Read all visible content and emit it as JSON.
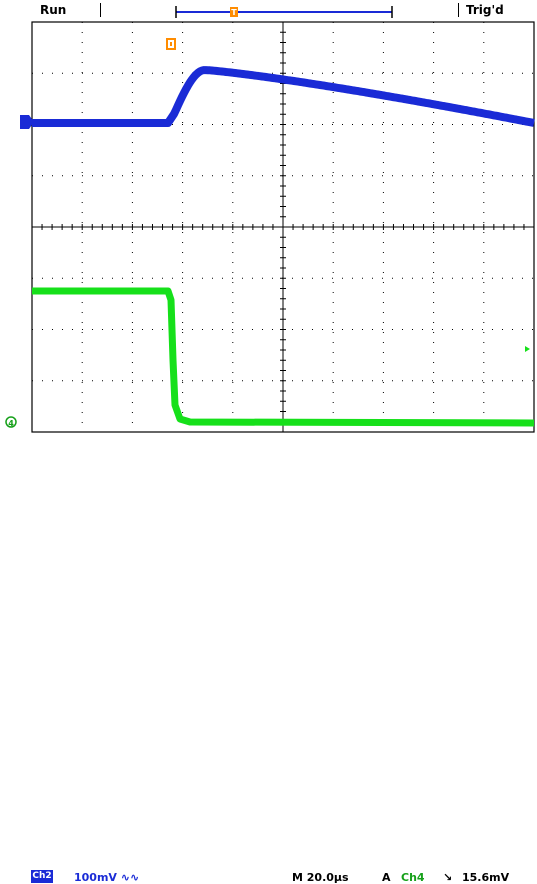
{
  "top_bar": {
    "run_status": "Run",
    "trigger_status": "Trig'd",
    "trigger_position_marker": "T"
  },
  "channels": [
    {
      "id": "ch2",
      "marker": "2",
      "color": "#1a2bd6",
      "trace": "blue-rising-pulse"
    },
    {
      "id": "ch4",
      "marker": "4",
      "color": "#16e01a",
      "trace": "green-falling-step"
    }
  ],
  "status_bar": {
    "channel_box": "Ch2",
    "vertical_scale": "100mV ∿∿",
    "horizontal_scale": "M 20.0µs",
    "trigger_mode": "A",
    "trigger_source": "Ch4",
    "trigger_slope": "↘",
    "trigger_level": "15.6mV"
  },
  "colors": {
    "ch2_trace": "#1a2bd6",
    "ch4_trace": "#16e01a",
    "trigger_marker": "#ff8c00",
    "grid": "#000000",
    "background": "#ffffff"
  }
}
